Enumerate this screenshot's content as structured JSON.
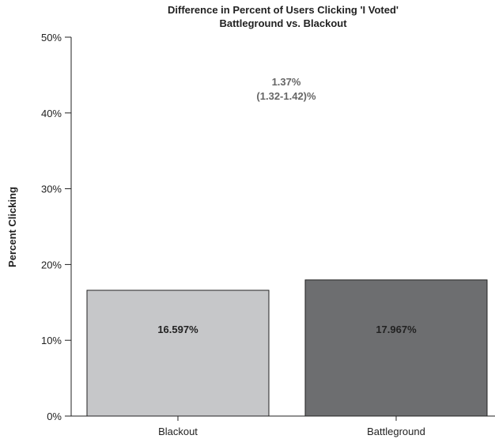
{
  "chart_data": {
    "type": "bar",
    "title": [
      "Difference in Percent of Users Clicking 'I Voted'",
      "Battleground vs. Blackout"
    ],
    "xlabel": "",
    "ylabel": "Percent Clicking",
    "ylim": [
      0,
      50
    ],
    "yticks": [
      0,
      10,
      20,
      30,
      40,
      50
    ],
    "ytick_labels": [
      "0%",
      "10%",
      "20%",
      "30%",
      "40%",
      "50%"
    ],
    "categories": [
      "Blackout",
      "Battleground"
    ],
    "values": [
      16.597,
      17.967
    ],
    "value_labels": [
      "16.597%",
      "17.967%"
    ],
    "bar_colors": [
      "#c6c7c9",
      "#6d6e70"
    ],
    "annotation": [
      "1.37%",
      "(1.32-1.42)%"
    ],
    "grid": false,
    "legend": "none"
  }
}
